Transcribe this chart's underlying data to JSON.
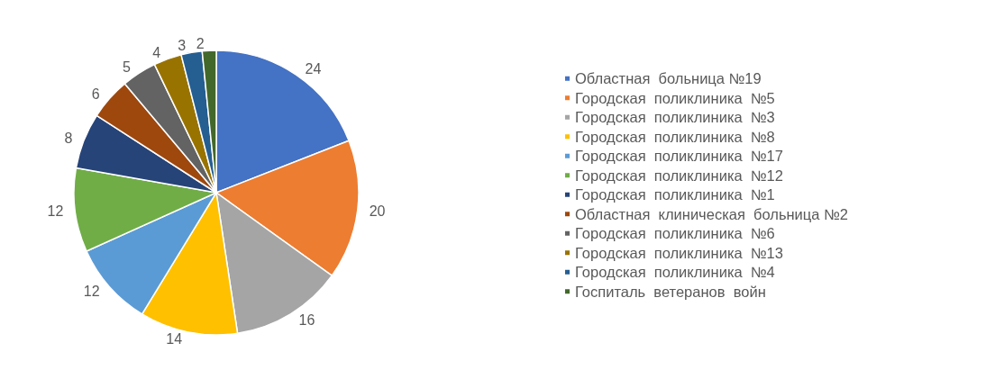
{
  "chart_data": {
    "type": "pie",
    "categories": [
      "Областная  больница №19",
      "Городская  поликлиника  №5",
      "Городская  поликлиника  №3",
      "Городская  поликлиника  №8",
      "Городская  поликлиника  №17",
      "Городская  поликлиника  №12",
      "Городская  поликлиника  №1",
      "Областная  клиническая  больница №2",
      "Городская  поликлиника  №6",
      "Городская  поликлиника  №13",
      "Городская  поликлиника  №4",
      "Госпиталь  ветеранов  войн"
    ],
    "values": [
      24,
      20,
      16,
      14,
      12,
      12,
      8,
      6,
      5,
      4,
      3,
      2
    ],
    "colors": [
      "#4472c4",
      "#ed7d31",
      "#a5a5a5",
      "#ffc000",
      "#5b9bd5",
      "#70ad47",
      "#264478",
      "#9e480e",
      "#636363",
      "#997300",
      "#255e91",
      "#43682b"
    ],
    "data_labels": true,
    "legend": "right"
  }
}
